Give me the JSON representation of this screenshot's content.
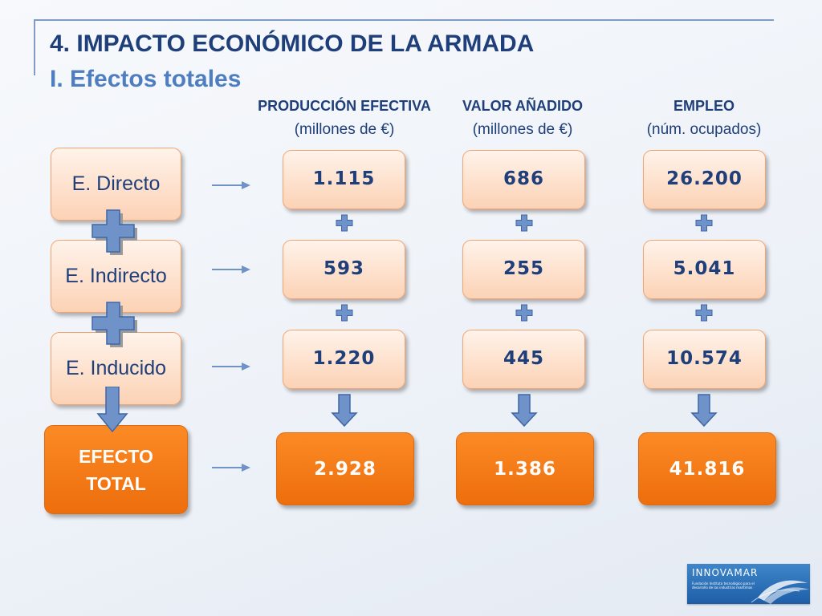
{
  "slide": {
    "title": "4. IMPACTO ECONÓMICO DE LA ARMADA",
    "subtitle": "I. Efectos totales"
  },
  "columns": [
    {
      "header": "PRODUCCIÓN EFECTIVA",
      "unit": "(millones de €)"
    },
    {
      "header": "VALOR AÑADIDO",
      "unit": "(millones de €)"
    },
    {
      "header": "EMPLEO",
      "unit": "(núm. ocupados)"
    }
  ],
  "rows": [
    {
      "label": "E. Directo",
      "values": [
        "1.115",
        "686",
        "26.200"
      ]
    },
    {
      "label": "E. Indirecto",
      "values": [
        "593",
        "255",
        "5.041"
      ]
    },
    {
      "label": "E. Inducido",
      "values": [
        "1.220",
        "445",
        "10.574"
      ]
    }
  ],
  "total": {
    "label_line1": "EFECTO",
    "label_line2": "TOTAL",
    "values": [
      "2.928",
      "1.386",
      "41.816"
    ]
  },
  "logo": {
    "name": "INNOVAMAR",
    "tagline": "Fundación Instituto tecnológico para el desarrollo de las industrias marítimas"
  },
  "colors": {
    "title": "#1f3f7a",
    "subtitle": "#4f7ec0",
    "light_box": "#fcd2b5",
    "orange_box": "#ed6e0c",
    "connector": "#6f93c8"
  },
  "icons": {
    "plus": "plus-icon",
    "arrow_right": "arrow-right-icon",
    "arrow_down": "arrow-down-icon"
  }
}
